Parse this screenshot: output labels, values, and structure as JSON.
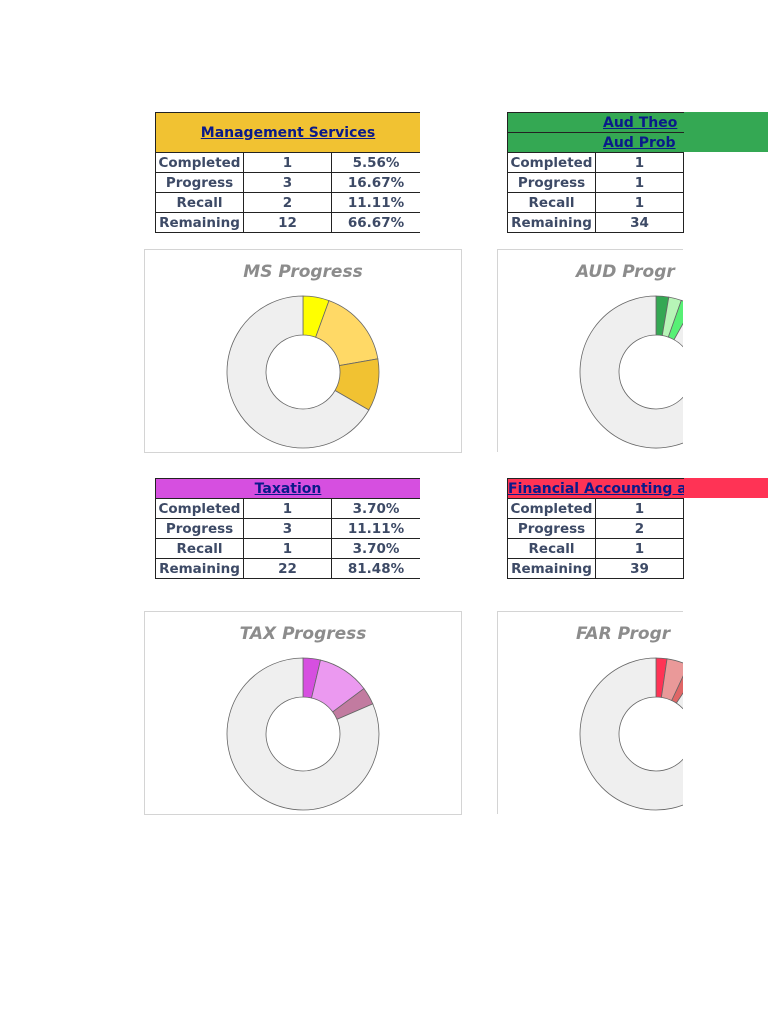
{
  "panels": {
    "ms": {
      "header": [
        "Management Services"
      ],
      "header_color": "#f1c232",
      "rows": [
        {
          "label": "Completed",
          "count": "1",
          "pct": "5.56%"
        },
        {
          "label": "Progress",
          "count": "3",
          "pct": "16.67%"
        },
        {
          "label": "Recall",
          "count": "2",
          "pct": "11.11%"
        },
        {
          "label": "Remaining",
          "count": "12",
          "pct": "66.67%"
        }
      ]
    },
    "aud": {
      "header": [
        "Aud Theo",
        "Aud Prob"
      ],
      "header_color": "#34a853",
      "rows": [
        {
          "label": "Completed",
          "count": "1"
        },
        {
          "label": "Progress",
          "count": "1"
        },
        {
          "label": "Recall",
          "count": "1"
        },
        {
          "label": "Remaining",
          "count": "34"
        }
      ]
    },
    "tax": {
      "header": [
        "Taxation"
      ],
      "header_color": "#d64fe0",
      "rows": [
        {
          "label": "Completed",
          "count": "1",
          "pct": "3.70%"
        },
        {
          "label": "Progress",
          "count": "3",
          "pct": "11.11%"
        },
        {
          "label": "Recall",
          "count": "1",
          "pct": "3.70%"
        },
        {
          "label": "Remaining",
          "count": "22",
          "pct": "81.48%"
        }
      ]
    },
    "far": {
      "header": [
        "Financial Accounting a"
      ],
      "header_color": "#ff3355",
      "rows": [
        {
          "label": "Completed",
          "count": "1"
        },
        {
          "label": "Progress",
          "count": "2"
        },
        {
          "label": "Recall",
          "count": "1"
        },
        {
          "label": "Remaining",
          "count": "39"
        }
      ]
    }
  },
  "chart_data": [
    {
      "type": "pie",
      "title": "MS Progress",
      "categories": [
        "Completed",
        "Progress",
        "Recall",
        "Remaining"
      ],
      "values": [
        1,
        3,
        2,
        12
      ],
      "colors": [
        "#ffff00",
        "#ffd966",
        "#f1c232",
        "#efefef"
      ],
      "donut": true
    },
    {
      "type": "pie",
      "title": "AUD Progr",
      "categories": [
        "Completed",
        "Progress",
        "Recall",
        "Remaining"
      ],
      "values": [
        1,
        1,
        1,
        34
      ],
      "colors": [
        "#34a853",
        "#b7f5b7",
        "#57f075",
        "#efefef"
      ],
      "donut": true
    },
    {
      "type": "pie",
      "title": "TAX Progress",
      "categories": [
        "Completed",
        "Progress",
        "Recall",
        "Remaining"
      ],
      "values": [
        1,
        3,
        1,
        22
      ],
      "colors": [
        "#d64fe0",
        "#eb99f0",
        "#c27ba0",
        "#efefef"
      ],
      "donut": true
    },
    {
      "type": "pie",
      "title": "FAR Progr",
      "categories": [
        "Completed",
        "Progress",
        "Recall",
        "Remaining"
      ],
      "values": [
        1,
        2,
        1,
        39
      ],
      "colors": [
        "#ff3355",
        "#ea9999",
        "#e06666",
        "#efefef"
      ],
      "donut": true
    }
  ]
}
